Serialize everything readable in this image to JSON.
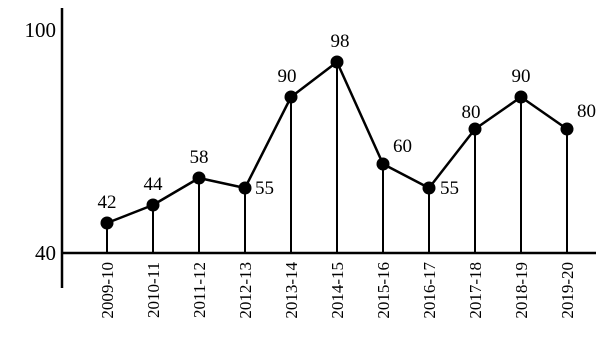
{
  "chart_data": {
    "type": "line",
    "title": "",
    "xlabel": "",
    "ylabel": "",
    "categories": [
      "2009-10",
      "2010-11",
      "2011-12",
      "2012-13",
      "2013-14",
      "2014-15",
      "2015-16",
      "2016-17",
      "2017-18",
      "2018-19",
      "2019-20"
    ],
    "series": [
      {
        "values": [
          42,
          44,
          58,
          55,
          90,
          98,
          60,
          55,
          80,
          90,
          80
        ]
      }
    ],
    "data_labels": [
      "42",
      "44",
      "58",
      "55",
      "90",
      "98",
      "60",
      "55",
      "80",
      "90",
      "80"
    ],
    "y_tick_labels": [
      "40",
      "100"
    ],
    "y_ticks": [
      40,
      100
    ],
    "colors": {
      "line": "#000000",
      "marker": "#000000",
      "text": "#000000"
    },
    "grid": false,
    "legend": "none"
  }
}
